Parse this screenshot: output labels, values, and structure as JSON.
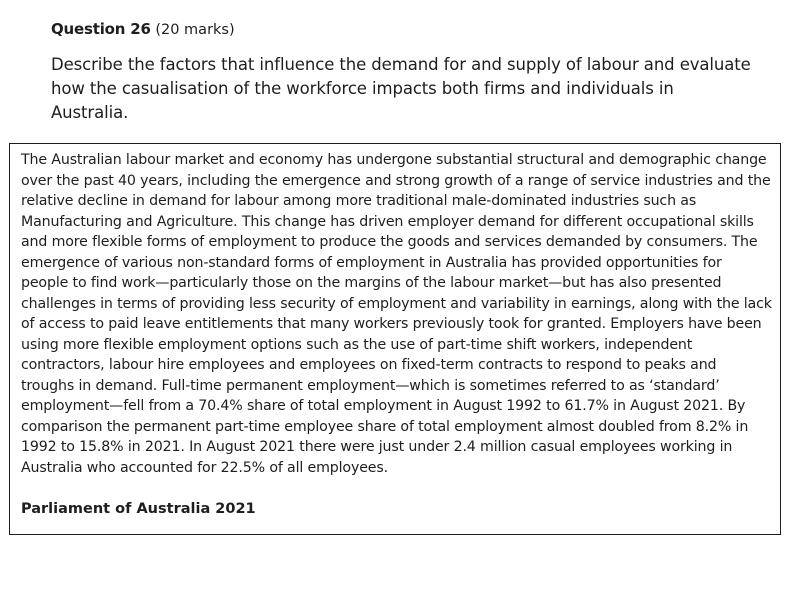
{
  "question": {
    "number": "Question 26",
    "marks": " (20 marks)",
    "prompt": "Describe the factors that influence the demand for and supply of labour and evaluate how the casualisation of the workforce impacts both firms and individuals in Australia."
  },
  "source": {
    "text": "The Australian labour market and economy has undergone substantial structural and demographic change over the past 40 years, including the emergence and strong growth of a range of service industries and the relative decline in demand for labour among more traditional male-dominated industries such as Manufacturing and Agriculture. This change has driven employer demand for different occupational skills and more flexible forms of employment to produce the goods and services demanded by consumers. The emergence of various non-standard forms of employment in Australia has provided opportunities for people to find work—particularly those on the margins of the labour market—but has also presented challenges in terms of providing less security of employment and variability in earnings, along with the lack of access to paid leave entitlements that many workers previously took for granted. Employers have been using more flexible employment options such as the use of part-time shift workers, independent contractors, labour hire employees and employees on fixed-term contracts to respond to peaks and troughs in demand. Full-time permanent employment—which is sometimes referred to as ‘standard’ employment—fell from a 70.4% share of total employment in August 1992 to 61.7% in August 2021. By comparison the permanent part-time employee share of total employment almost doubled from 8.2% in 1992 to 15.8% in 2021. In August 2021 there were just under 2.4 million casual employees working in Australia who accounted for 22.5% of all employees.",
    "attribution": "Parliament of Australia 2021"
  }
}
